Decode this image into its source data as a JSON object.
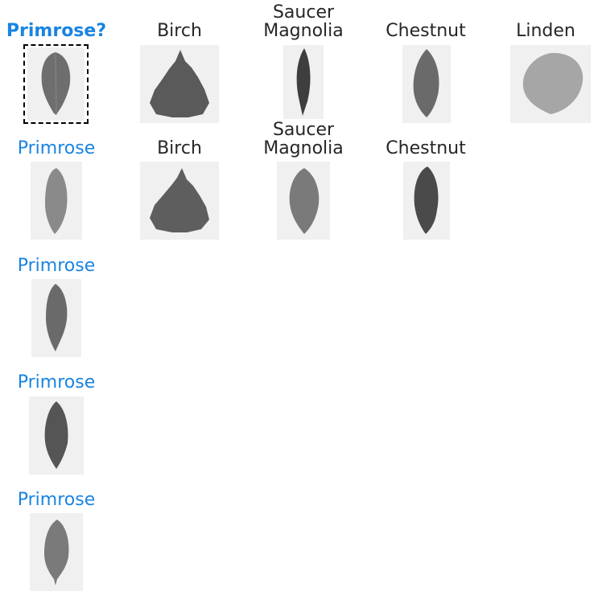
{
  "query": {
    "label": "Primrose?"
  },
  "row0": [
    {
      "label": "Birch"
    },
    {
      "label_line1": "Saucer",
      "label_line2": "Magnolia"
    },
    {
      "label": "Chestnut"
    },
    {
      "label": "Linden"
    }
  ],
  "row1": [
    {
      "label": "Primrose"
    },
    {
      "label": "Birch"
    },
    {
      "label_line1": "Saucer",
      "label_line2": "Magnolia"
    },
    {
      "label": "Chestnut"
    }
  ],
  "col0": [
    {
      "label": "Primrose"
    },
    {
      "label": "Primrose"
    },
    {
      "label": "Primrose"
    }
  ],
  "colors": {
    "query_label": "#1a84e0",
    "match_label": "#1a84e0",
    "other_label": "#262626"
  }
}
